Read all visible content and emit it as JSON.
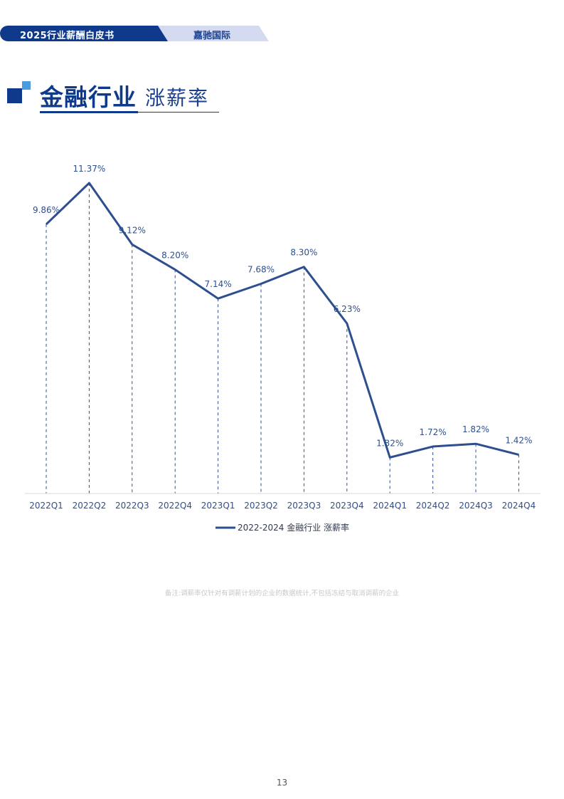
{
  "header": {
    "report_title": "2025行业薪酬白皮书",
    "company": "嘉驰国际"
  },
  "title": {
    "main": "金融行业",
    "sub": "涨薪率"
  },
  "chart_data": {
    "type": "line",
    "categories": [
      "2022Q1",
      "2022Q2",
      "2022Q3",
      "2022Q4",
      "2023Q1",
      "2023Q2",
      "2023Q3",
      "2023Q4",
      "2024Q1",
      "2024Q2",
      "2024Q3",
      "2024Q4"
    ],
    "series": [
      {
        "name": "2022-2024 金融行业 涨薪率",
        "values": [
          9.86,
          11.37,
          9.12,
          8.2,
          7.14,
          7.68,
          8.3,
          6.23,
          1.32,
          1.72,
          1.82,
          1.42
        ],
        "labels": [
          "9.86%",
          "11.37%",
          "9.12%",
          "8.20%",
          "7.14%",
          "7.68%",
          "8.30%",
          "6.23%",
          "1.32%",
          "1.72%",
          "1.82%",
          "1.42%"
        ],
        "color": "#2e4f8f"
      }
    ],
    "ylim": [
      0,
      12
    ],
    "grid": false,
    "legend_position": "bottom-center"
  },
  "note": "备注:调薪率仅针对有调薪计划的企业的数据统计,不包括冻结与取消调薪的企业",
  "page_number": "13"
}
